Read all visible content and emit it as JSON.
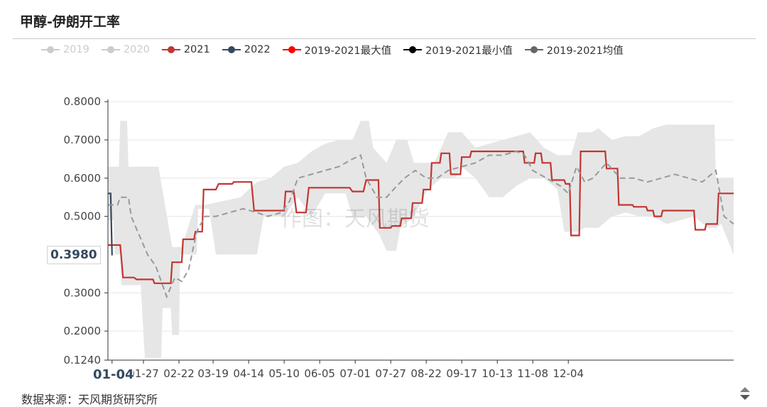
{
  "title": "甲醇-伊朗开工率",
  "source": "数据来源：天风期货研究所",
  "watermark": "作图：天风期货",
  "legend": [
    {
      "name": "2019",
      "color": "#cccccc",
      "dashed": false,
      "off": true
    },
    {
      "name": "2020",
      "color": "#cccccc",
      "dashed": false,
      "off": true
    },
    {
      "name": "2021",
      "color": "#c23531",
      "dashed": false,
      "off": false
    },
    {
      "name": "2022",
      "color": "#34495e",
      "dashed": false,
      "off": false
    },
    {
      "name": "2019-2021最大值",
      "color": "#ff0000",
      "dashed": false,
      "off": false
    },
    {
      "name": "2019-2021最小值",
      "color": "#000000",
      "dashed": false,
      "off": false
    },
    {
      "name": "2019-2021均值",
      "color": "#666666",
      "dashed": false,
      "off": false
    }
  ],
  "pointer": {
    "y_label": "0.3980",
    "x_label": "01-04"
  },
  "chart_data": {
    "type": "line",
    "x_range": [
      "01-01",
      "12-31"
    ],
    "x_ticks": [
      "01-04",
      "01-27",
      "02-22",
      "03-19",
      "04-14",
      "05-10",
      "06-05",
      "07-01",
      "07-27",
      "08-22",
      "09-17",
      "10-13",
      "11-08",
      "12-04"
    ],
    "x_tick_days": [
      4,
      27,
      53,
      78,
      104,
      130,
      156,
      182,
      208,
      234,
      260,
      286,
      312,
      338
    ],
    "y_ticks": [
      "0.8000",
      "0.7000",
      "0.6000",
      "0.5000",
      "0.3000",
      "0.2000",
      "0.1240"
    ],
    "y_tick_values": [
      0.8,
      0.7,
      0.6,
      0.5,
      0.3,
      0.2,
      0.124
    ],
    "ylim": [
      0.124,
      0.83
    ],
    "grid": true,
    "series": [
      {
        "name": "2021",
        "color": "#c23531",
        "points": [
          [
            1,
            0.425
          ],
          [
            10,
            0.425
          ],
          [
            12,
            0.34
          ],
          [
            20,
            0.34
          ],
          [
            22,
            0.335
          ],
          [
            34,
            0.335
          ],
          [
            35,
            0.325
          ],
          [
            47,
            0.325
          ],
          [
            48,
            0.38
          ],
          [
            55,
            0.38
          ],
          [
            56,
            0.44
          ],
          [
            64,
            0.44
          ],
          [
            65,
            0.46
          ],
          [
            70,
            0.46
          ],
          [
            71,
            0.57
          ],
          [
            80,
            0.57
          ],
          [
            82,
            0.585
          ],
          [
            92,
            0.585
          ],
          [
            93,
            0.59
          ],
          [
            106,
            0.59
          ],
          [
            108,
            0.515
          ],
          [
            130,
            0.515
          ],
          [
            131,
            0.565
          ],
          [
            137,
            0.565
          ],
          [
            139,
            0.51
          ],
          [
            146,
            0.51
          ],
          [
            148,
            0.575
          ],
          [
            178,
            0.575
          ],
          [
            180,
            0.565
          ],
          [
            188,
            0.565
          ],
          [
            190,
            0.595
          ],
          [
            199,
            0.595
          ],
          [
            200,
            0.47
          ],
          [
            208,
            0.47
          ],
          [
            209,
            0.475
          ],
          [
            215,
            0.475
          ],
          [
            216,
            0.495
          ],
          [
            223,
            0.495
          ],
          [
            224,
            0.535
          ],
          [
            231,
            0.535
          ],
          [
            232,
            0.57
          ],
          [
            237,
            0.57
          ],
          [
            238,
            0.64
          ],
          [
            244,
            0.64
          ],
          [
            245,
            0.665
          ],
          [
            251,
            0.665
          ],
          [
            252,
            0.61
          ],
          [
            259,
            0.61
          ],
          [
            260,
            0.655
          ],
          [
            266,
            0.655
          ],
          [
            267,
            0.67
          ],
          [
            305,
            0.67
          ],
          [
            306,
            0.64
          ],
          [
            313,
            0.64
          ],
          [
            314,
            0.665
          ],
          [
            318,
            0.665
          ],
          [
            319,
            0.64
          ],
          [
            325,
            0.64
          ],
          [
            326,
            0.595
          ],
          [
            335,
            0.595
          ],
          [
            336,
            0.585
          ],
          [
            339,
            0.585
          ],
          [
            340,
            0.45
          ],
          [
            346,
            0.45
          ],
          [
            347,
            0.67
          ],
          [
            365,
            0.67
          ],
          [
            366,
            0.625
          ],
          [
            374,
            0.625
          ],
          [
            375,
            0.53
          ],
          [
            385,
            0.53
          ],
          [
            386,
            0.525
          ],
          [
            395,
            0.525
          ],
          [
            396,
            0.515
          ],
          [
            400,
            0.515
          ],
          [
            401,
            0.5
          ],
          [
            406,
            0.5
          ],
          [
            407,
            0.515
          ],
          [
            430,
            0.515
          ],
          [
            431,
            0.465
          ],
          [
            438,
            0.465
          ],
          [
            439,
            0.48
          ],
          [
            447,
            0.48
          ],
          [
            448,
            0.56
          ],
          [
            459,
            0.56
          ]
        ]
      },
      {
        "name": "2022",
        "color": "#34495e",
        "points": [
          [
            1,
            0.56
          ],
          [
            3,
            0.56
          ],
          [
            4,
            0.398
          ]
        ]
      },
      {
        "name": "2019-2021最大值",
        "color": "#e6e6e6",
        "role": "band-upper",
        "points": [
          [
            1,
            0.63
          ],
          [
            9,
            0.63
          ],
          [
            10,
            0.75
          ],
          [
            15,
            0.75
          ],
          [
            16,
            0.63
          ],
          [
            30,
            0.63
          ],
          [
            38,
            0.63
          ],
          [
            48,
            0.42
          ],
          [
            55,
            0.42
          ],
          [
            65,
            0.53
          ],
          [
            72,
            0.53
          ],
          [
            98,
            0.55
          ],
          [
            110,
            0.59
          ],
          [
            120,
            0.6
          ],
          [
            130,
            0.63
          ],
          [
            140,
            0.64
          ],
          [
            150,
            0.67
          ],
          [
            160,
            0.69
          ],
          [
            170,
            0.7
          ],
          [
            180,
            0.7
          ],
          [
            186,
            0.75
          ],
          [
            192,
            0.75
          ],
          [
            195,
            0.68
          ],
          [
            205,
            0.64
          ],
          [
            212,
            0.7
          ],
          [
            220,
            0.7
          ],
          [
            225,
            0.64
          ],
          [
            240,
            0.64
          ],
          [
            250,
            0.72
          ],
          [
            260,
            0.72
          ],
          [
            270,
            0.68
          ],
          [
            280,
            0.69
          ],
          [
            290,
            0.7
          ],
          [
            300,
            0.71
          ],
          [
            310,
            0.72
          ],
          [
            320,
            0.68
          ],
          [
            330,
            0.66
          ],
          [
            340,
            0.66
          ],
          [
            345,
            0.72
          ],
          [
            355,
            0.72
          ],
          [
            360,
            0.73
          ],
          [
            370,
            0.7
          ],
          [
            380,
            0.71
          ],
          [
            390,
            0.71
          ],
          [
            400,
            0.73
          ],
          [
            410,
            0.74
          ],
          [
            440,
            0.74
          ],
          [
            445,
            0.74
          ],
          [
            446,
            0.6
          ],
          [
            459,
            0.6
          ]
        ]
      },
      {
        "name": "2019-2021最小值",
        "color": "#e6e6e6",
        "role": "band-lower",
        "points": [
          [
            1,
            0.49
          ],
          [
            5,
            0.49
          ],
          [
            6,
            0.4
          ],
          [
            10,
            0.4
          ],
          [
            11,
            0.32
          ],
          [
            25,
            0.32
          ],
          [
            28,
            0.13
          ],
          [
            40,
            0.13
          ],
          [
            41,
            0.26
          ],
          [
            47,
            0.26
          ],
          [
            48,
            0.19
          ],
          [
            53,
            0.19
          ],
          [
            54,
            0.4
          ],
          [
            60,
            0.4
          ],
          [
            66,
            0.4
          ],
          [
            67,
            0.52
          ],
          [
            75,
            0.52
          ],
          [
            80,
            0.4
          ],
          [
            110,
            0.4
          ],
          [
            115,
            0.5
          ],
          [
            130,
            0.5
          ],
          [
            140,
            0.55
          ],
          [
            150,
            0.5
          ],
          [
            160,
            0.56
          ],
          [
            175,
            0.56
          ],
          [
            180,
            0.5
          ],
          [
            190,
            0.5
          ],
          [
            200,
            0.45
          ],
          [
            205,
            0.41
          ],
          [
            212,
            0.41
          ],
          [
            215,
            0.47
          ],
          [
            225,
            0.5
          ],
          [
            235,
            0.57
          ],
          [
            245,
            0.6
          ],
          [
            255,
            0.6
          ],
          [
            260,
            0.63
          ],
          [
            270,
            0.6
          ],
          [
            280,
            0.55
          ],
          [
            290,
            0.55
          ],
          [
            300,
            0.58
          ],
          [
            310,
            0.6
          ],
          [
            320,
            0.6
          ],
          [
            330,
            0.57
          ],
          [
            335,
            0.46
          ],
          [
            345,
            0.46
          ],
          [
            350,
            0.47
          ],
          [
            360,
            0.47
          ],
          [
            370,
            0.5
          ],
          [
            380,
            0.51
          ],
          [
            390,
            0.5
          ],
          [
            400,
            0.5
          ],
          [
            410,
            0.48
          ],
          [
            430,
            0.5
          ],
          [
            440,
            0.47
          ],
          [
            446,
            0.47
          ],
          [
            450,
            0.48
          ],
          [
            459,
            0.4
          ]
        ]
      },
      {
        "name": "2019-2021均值",
        "color": "#999999",
        "dashed": true,
        "points": [
          [
            1,
            0.53
          ],
          [
            8,
            0.53
          ],
          [
            10,
            0.55
          ],
          [
            16,
            0.55
          ],
          [
            18,
            0.5
          ],
          [
            24,
            0.45
          ],
          [
            30,
            0.4
          ],
          [
            36,
            0.37
          ],
          [
            44,
            0.29
          ],
          [
            50,
            0.34
          ],
          [
            55,
            0.33
          ],
          [
            60,
            0.36
          ],
          [
            66,
            0.46
          ],
          [
            72,
            0.5
          ],
          [
            80,
            0.5
          ],
          [
            90,
            0.51
          ],
          [
            100,
            0.52
          ],
          [
            110,
            0.51
          ],
          [
            118,
            0.5
          ],
          [
            128,
            0.51
          ],
          [
            134,
            0.54
          ],
          [
            140,
            0.6
          ],
          [
            150,
            0.61
          ],
          [
            160,
            0.62
          ],
          [
            170,
            0.63
          ],
          [
            180,
            0.65
          ],
          [
            186,
            0.66
          ],
          [
            190,
            0.6
          ],
          [
            198,
            0.55
          ],
          [
            205,
            0.55
          ],
          [
            210,
            0.57
          ],
          [
            218,
            0.6
          ],
          [
            226,
            0.62
          ],
          [
            234,
            0.6
          ],
          [
            242,
            0.6
          ],
          [
            250,
            0.62
          ],
          [
            260,
            0.63
          ],
          [
            270,
            0.64
          ],
          [
            280,
            0.66
          ],
          [
            290,
            0.66
          ],
          [
            300,
            0.67
          ],
          [
            306,
            0.66
          ],
          [
            312,
            0.62
          ],
          [
            322,
            0.6
          ],
          [
            332,
            0.58
          ],
          [
            338,
            0.56
          ],
          [
            344,
            0.63
          ],
          [
            350,
            0.59
          ],
          [
            356,
            0.6
          ],
          [
            366,
            0.64
          ],
          [
            376,
            0.6
          ],
          [
            386,
            0.6
          ],
          [
            396,
            0.59
          ],
          [
            406,
            0.6
          ],
          [
            416,
            0.61
          ],
          [
            426,
            0.6
          ],
          [
            436,
            0.59
          ],
          [
            446,
            0.62
          ],
          [
            452,
            0.5
          ],
          [
            459,
            0.48
          ]
        ]
      }
    ]
  }
}
